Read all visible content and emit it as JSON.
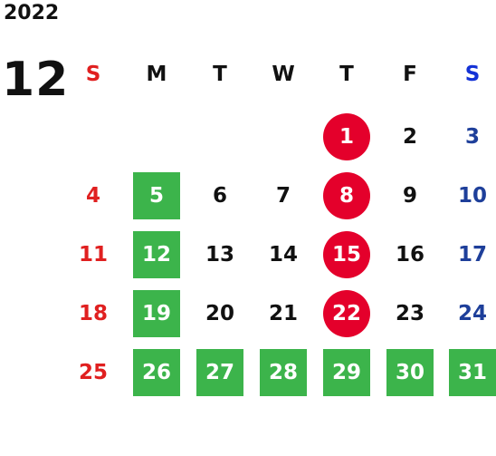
{
  "year": "2022",
  "month": "12",
  "weekdays": [
    "S",
    "M",
    "T",
    "W",
    "T",
    "F",
    "S"
  ],
  "weeks": [
    [
      "",
      "",
      "",
      "",
      "1",
      "2",
      "3"
    ],
    [
      "4",
      "5",
      "6",
      "7",
      "8",
      "9",
      "10"
    ],
    [
      "11",
      "12",
      "13",
      "14",
      "15",
      "16",
      "17"
    ],
    [
      "18",
      "19",
      "20",
      "21",
      "22",
      "23",
      "24"
    ],
    [
      "25",
      "26",
      "27",
      "28",
      "29",
      "30",
      "31"
    ]
  ],
  "highlights": {
    "green_days": [
      "5",
      "12",
      "19",
      "26",
      "27",
      "28",
      "29",
      "30",
      "31"
    ],
    "red_circle_days": [
      "1",
      "8",
      "15",
      "22"
    ]
  },
  "colors": {
    "sunday": "#e02020",
    "saturday": "#1e3f9a",
    "saturday_header": "#1432d6",
    "green_highlight": "#3cb44b",
    "red_highlight": "#e4002b"
  }
}
